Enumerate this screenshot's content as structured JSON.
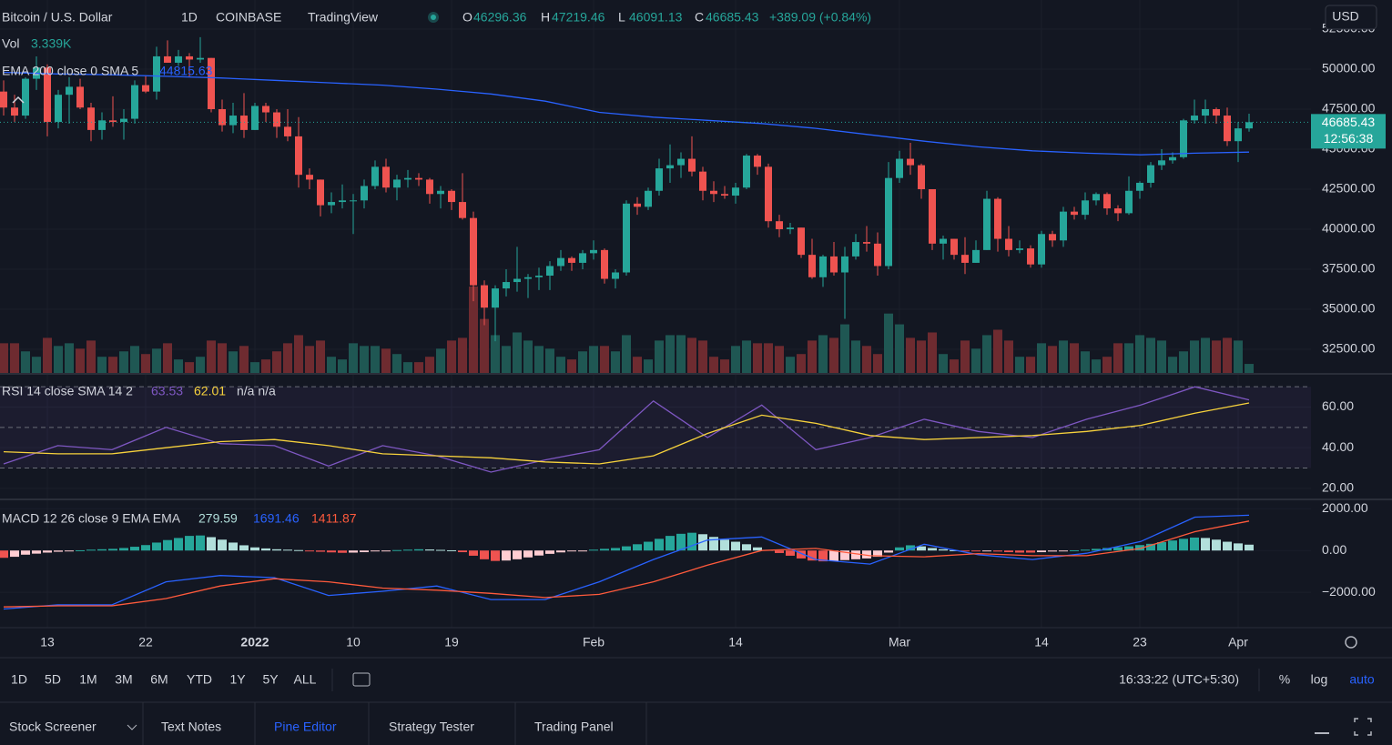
{
  "ui": {
    "symbol": "Bitcoin / U.S. Dollar",
    "interval": "1D",
    "exchange": "COINBASE",
    "brand": "TradingView",
    "ohlc_labels": [
      "O",
      "H",
      "L",
      "C"
    ],
    "change": "+389.09 (+0.84%)",
    "currency": "USD",
    "countdown": "12:56:38",
    "ranges": [
      "1D",
      "5D",
      "1M",
      "3M",
      "6M",
      "YTD",
      "1Y",
      "5Y",
      "ALL"
    ],
    "clock": "16:33:22 (UTC+5:30)",
    "scale_options": [
      "%",
      "log",
      "auto"
    ],
    "tabs": [
      "Stock Screener",
      "Text Notes",
      "Pine Editor",
      "Strategy Tester",
      "Trading Panel"
    ]
  },
  "chart_data": {
    "type": "candlestick",
    "up_color": "#26a69a",
    "down_color": "#ef5350",
    "ylim": [
      31020,
      54320
    ],
    "yticks": [
      {
        "value": 32500,
        "label": "32500.00"
      },
      {
        "value": 35000,
        "label": "35000.00"
      },
      {
        "value": 37500,
        "label": "37500.00"
      },
      {
        "value": 40000,
        "label": "40000.00"
      },
      {
        "value": 42500,
        "label": "42500.00"
      },
      {
        "value": 45000,
        "label": "45000.00"
      },
      {
        "value": 47500,
        "label": "47500.00"
      },
      {
        "value": 50000,
        "label": "50000.00"
      },
      {
        "value": 52500,
        "label": "52500.00"
      }
    ],
    "xticks": [
      {
        "value": 4,
        "label": "13"
      },
      {
        "value": 13,
        "label": "22"
      },
      {
        "value": 23,
        "label": "2022"
      },
      {
        "value": 32,
        "label": "10"
      },
      {
        "value": 41,
        "label": "19"
      },
      {
        "value": 54,
        "label": "Feb"
      },
      {
        "value": 67,
        "label": "14"
      },
      {
        "value": 82,
        "label": "Mar"
      },
      {
        "value": 95,
        "label": "14"
      },
      {
        "value": 104,
        "label": "23"
      },
      {
        "value": 113,
        "label": "Apr"
      }
    ],
    "grid": true,
    "candles": [
      [
        48600,
        49300,
        47100,
        47600
      ],
      [
        47600,
        48400,
        46700,
        47100
      ],
      [
        47100,
        49500,
        46900,
        49400
      ],
      [
        49400,
        50800,
        48700,
        50100
      ],
      [
        50100,
        50300,
        45800,
        46700
      ],
      [
        46700,
        48700,
        46300,
        48400
      ],
      [
        48400,
        49500,
        46600,
        48900
      ],
      [
        48900,
        49400,
        47500,
        47600
      ],
      [
        47600,
        47900,
        45500,
        46200
      ],
      [
        46200,
        47300,
        45600,
        46800
      ],
      [
        46800,
        48300,
        46400,
        46700
      ],
      [
        46700,
        47500,
        45600,
        46900
      ],
      [
        46900,
        49300,
        46600,
        49000
      ],
      [
        49000,
        49600,
        48500,
        48600
      ],
      [
        48600,
        51400,
        48100,
        50800
      ],
      [
        50800,
        51800,
        50400,
        50400
      ],
      [
        50400,
        51200,
        50200,
        50800
      ],
      [
        50800,
        51000,
        49500,
        50600
      ],
      [
        50600,
        52000,
        50400,
        50700
      ],
      [
        50700,
        50700,
        47300,
        47500
      ],
      [
        47500,
        48100,
        46100,
        46500
      ],
      [
        46500,
        47900,
        46000,
        47100
      ],
      [
        47100,
        48500,
        45700,
        46200
      ],
      [
        46200,
        47900,
        46200,
        47700
      ],
      [
        47700,
        47900,
        46700,
        47300
      ],
      [
        47300,
        47500,
        45700,
        46400
      ],
      [
        46400,
        47500,
        45500,
        45800
      ],
      [
        45800,
        47000,
        42600,
        43400
      ],
      [
        43400,
        43800,
        42500,
        43100
      ],
      [
        43100,
        43100,
        40800,
        41500
      ],
      [
        41500,
        42300,
        41000,
        41700
      ],
      [
        41700,
        42800,
        41300,
        41800
      ],
      [
        41800,
        42200,
        39700,
        41800
      ],
      [
        41800,
        43100,
        41300,
        42700
      ],
      [
        42700,
        44300,
        42500,
        43900
      ],
      [
        43900,
        44400,
        42300,
        42600
      ],
      [
        42600,
        43400,
        41800,
        43100
      ],
      [
        43100,
        43700,
        42600,
        43200
      ],
      [
        43200,
        43500,
        42700,
        43100
      ],
      [
        43100,
        43200,
        41600,
        42200
      ],
      [
        42200,
        42700,
        41300,
        42400
      ],
      [
        42400,
        42500,
        41200,
        41700
      ],
      [
        41700,
        43500,
        40600,
        40700
      ],
      [
        40700,
        41100,
        35500,
        36500
      ],
      [
        36500,
        36800,
        34000,
        35100
      ],
      [
        35100,
        36500,
        33000,
        36300
      ],
      [
        36300,
        37500,
        35800,
        36700
      ],
      [
        36700,
        38900,
        36100,
        36900
      ],
      [
        36900,
        37200,
        35700,
        37000
      ],
      [
        37000,
        37600,
        36200,
        37100
      ],
      [
        37100,
        38000,
        36200,
        37700
      ],
      [
        37700,
        38700,
        37400,
        38200
      ],
      [
        38200,
        38300,
        37400,
        37900
      ],
      [
        37900,
        38700,
        37500,
        38500
      ],
      [
        38500,
        39300,
        38100,
        38700
      ],
      [
        38700,
        38800,
        36600,
        36900
      ],
      [
        36900,
        37500,
        36300,
        37300
      ],
      [
        37300,
        41800,
        37100,
        41600
      ],
      [
        41600,
        42000,
        40900,
        41400
      ],
      [
        41400,
        42600,
        41200,
        42400
      ],
      [
        42400,
        44400,
        42100,
        43800
      ],
      [
        43800,
        45300,
        42900,
        44000
      ],
      [
        44000,
        44800,
        43200,
        44400
      ],
      [
        44400,
        45800,
        43300,
        43600
      ],
      [
        43600,
        43900,
        41800,
        42400
      ],
      [
        42400,
        43000,
        41700,
        42200
      ],
      [
        42200,
        42700,
        41900,
        42100
      ],
      [
        42100,
        42900,
        41600,
        42600
      ],
      [
        42600,
        44700,
        42500,
        44600
      ],
      [
        44600,
        44700,
        43400,
        43900
      ],
      [
        43900,
        44100,
        40100,
        40500
      ],
      [
        40500,
        40900,
        39500,
        40000
      ],
      [
        40000,
        40400,
        39700,
        40100
      ],
      [
        40100,
        40100,
        38200,
        38400
      ],
      [
        38400,
        39400,
        36900,
        37000
      ],
      [
        37000,
        38400,
        36400,
        38300
      ],
      [
        38300,
        39200,
        37100,
        37300
      ],
      [
        37300,
        38900,
        34400,
        38300
      ],
      [
        38300,
        39700,
        38100,
        39200
      ],
      [
        39200,
        40200,
        38600,
        39100
      ],
      [
        39100,
        39800,
        37100,
        37700
      ],
      [
        37700,
        44200,
        37500,
        43200
      ],
      [
        43200,
        44900,
        42900,
        44400
      ],
      [
        44400,
        45400,
        43400,
        44000
      ],
      [
        44000,
        44100,
        41900,
        42500
      ],
      [
        42500,
        42500,
        38700,
        39100
      ],
      [
        39100,
        39600,
        38100,
        39400
      ],
      [
        39400,
        39400,
        38100,
        38400
      ],
      [
        38400,
        39500,
        37200,
        37900
      ],
      [
        37900,
        39300,
        37900,
        38700
      ],
      [
        38700,
        42400,
        38700,
        41900
      ],
      [
        41900,
        42000,
        38600,
        39400
      ],
      [
        39400,
        40200,
        38300,
        38700
      ],
      [
        38700,
        39300,
        38500,
        38800
      ],
      [
        38800,
        39000,
        37600,
        37800
      ],
      [
        37800,
        39900,
        37600,
        39700
      ],
      [
        39700,
        39900,
        38900,
        39300
      ],
      [
        39300,
        41400,
        38900,
        41100
      ],
      [
        41100,
        41400,
        40600,
        40900
      ],
      [
        40900,
        42300,
        40600,
        41800
      ],
      [
        41800,
        42300,
        41500,
        42200
      ],
      [
        42200,
        42300,
        40900,
        41300
      ],
      [
        41300,
        41500,
        40500,
        41000
      ],
      [
        41000,
        43300,
        40900,
        42400
      ],
      [
        42400,
        43000,
        41900,
        42900
      ],
      [
        42900,
        44200,
        42600,
        44000
      ],
      [
        44000,
        45000,
        43700,
        44300
      ],
      [
        44300,
        44800,
        44100,
        44500
      ],
      [
        44500,
        46900,
        44400,
        46800
      ],
      [
        46800,
        48100,
        46600,
        47100
      ],
      [
        47100,
        48100,
        46600,
        47500
      ],
      [
        47500,
        47600,
        46600,
        47100
      ],
      [
        47100,
        47600,
        45200,
        45500
      ],
      [
        45500,
        46700,
        44200,
        46300
      ],
      [
        46296.36,
        47219.46,
        46091.13,
        46685.43
      ]
    ],
    "volume_name": "Vol",
    "volume_value_label": "3.339K",
    "volume": [
      11,
      11,
      8,
      6,
      13,
      10,
      11,
      9,
      12,
      6,
      6,
      8,
      10,
      7,
      9,
      11,
      5,
      4,
      6,
      12,
      11,
      8,
      10,
      4,
      5,
      8,
      11,
      14,
      10,
      12,
      6,
      5,
      11,
      10,
      10,
      9,
      7,
      4,
      4,
      6,
      9,
      12,
      13,
      32,
      20,
      14,
      10,
      15,
      12,
      10,
      9,
      6,
      5,
      8,
      10,
      10,
      8,
      14,
      6,
      5,
      12,
      14,
      14,
      13,
      12,
      6,
      5,
      10,
      12,
      11,
      11,
      10,
      6,
      7,
      12,
      14,
      13,
      18,
      12,
      10,
      7,
      22,
      18,
      13,
      12,
      15,
      7,
      5,
      12,
      9,
      14,
      16,
      12,
      6,
      6,
      11,
      10,
      12,
      11,
      8,
      5,
      6,
      11,
      11,
      14,
      13,
      12,
      6,
      8,
      12,
      13,
      12,
      13,
      12,
      3.339
    ],
    "ema": {
      "name": "EMA 200 close 0 SMA 5",
      "color": "#2962ff",
      "values": [
        49800,
        49700,
        49650,
        49550,
        49450,
        49300,
        49150,
        49000,
        48750,
        48450,
        48000,
        47300,
        47000,
        46800,
        46600,
        46300,
        45900,
        45500,
        45150,
        44900,
        44750,
        44650,
        44750,
        44815.63
      ]
    },
    "rsi": {
      "name": "RSI 14 close SMA 14 2",
      "color": "#7e57c2",
      "ma_color": "#f7d23c",
      "extra": "n/a n/a",
      "ylim": [
        15,
        75
      ],
      "levels": [
        70,
        50,
        30
      ],
      "yticks": [
        {
          "value": 20,
          "label": "20.00"
        },
        {
          "value": 40,
          "label": "40.00"
        },
        {
          "value": 60,
          "label": "60.00"
        }
      ],
      "values": [
        32,
        41,
        39,
        50,
        42,
        41,
        31,
        41,
        36,
        28,
        34,
        39,
        63,
        45,
        61,
        39,
        45,
        54,
        48,
        45,
        54,
        61,
        70,
        63.53
      ],
      "ma_values": [
        38,
        37,
        37,
        40,
        43,
        44,
        41,
        37,
        36,
        35,
        33,
        32,
        36,
        47,
        56,
        52,
        46,
        44,
        45,
        46,
        48,
        51,
        57,
        62.01
      ]
    },
    "macd": {
      "name": "MACD 12 26 close 9 EMA EMA",
      "color": "#2962ff",
      "signal_color": "#ff5a3c",
      "ylim": [
        -3650,
        2360
      ],
      "yticks": [
        {
          "value": -2000,
          "label": "−2000.00"
        },
        {
          "value": 0,
          "label": "0.00"
        },
        {
          "value": 2000,
          "label": "2000.00"
        }
      ],
      "values": [
        -2800,
        -2600,
        -2600,
        -1500,
        -1200,
        -1300,
        -2150,
        -1950,
        -1700,
        -2350,
        -2350,
        -1500,
        -430,
        500,
        650,
        -430,
        -650,
        300,
        -200,
        -430,
        -130,
        430,
        1600,
        1691.46
      ],
      "signal": [
        -2700,
        -2650,
        -2650,
        -2300,
        -1700,
        -1350,
        -1500,
        -1800,
        -1900,
        -2050,
        -2250,
        -2100,
        -1500,
        -700,
        0,
        100,
        -250,
        -300,
        -150,
        -250,
        -250,
        100,
        900,
        1411.87
      ],
      "histogram": [
        -350,
        -300,
        -200,
        -150,
        -100,
        -60,
        -20,
        10,
        40,
        60,
        80,
        120,
        180,
        260,
        380,
        500,
        600,
        700,
        720,
        640,
        520,
        380,
        250,
        150,
        100,
        60,
        40,
        20,
        -20,
        -60,
        -90,
        -110,
        -100,
        -80,
        -40,
        -10,
        20,
        40,
        60,
        50,
        30,
        10,
        -80,
        -250,
        -420,
        -500,
        -480,
        -420,
        -330,
        -240,
        -160,
        -90,
        -40,
        -10,
        40,
        80,
        120,
        200,
        300,
        420,
        560,
        700,
        800,
        850,
        780,
        650,
        520,
        420,
        300,
        150,
        30,
        -120,
        -250,
        -380,
        -480,
        -520,
        -500,
        -460,
        -420,
        -380,
        -300,
        -100,
        150,
        250,
        200,
        120,
        60,
        10,
        -30,
        -40,
        -20,
        -50,
        -80,
        -100,
        -100,
        -80,
        -50,
        -20,
        10,
        40,
        80,
        120,
        160,
        200,
        260,
        320,
        400,
        480,
        560,
        620,
        600,
        520,
        420,
        340,
        279.59
      ]
    }
  }
}
